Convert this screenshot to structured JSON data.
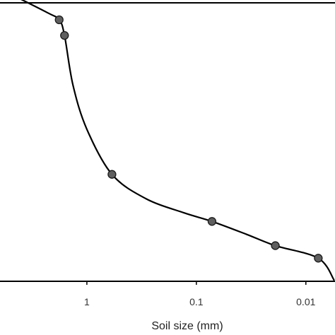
{
  "chart_data": {
    "type": "line",
    "title": "",
    "xlabel": "Soil size (mm)",
    "ylabel": "",
    "x_scale": "log",
    "x_reversed": true,
    "xlim": [
      6.4,
      0.0055
    ],
    "ylim": [
      0,
      100
    ],
    "grid": false,
    "legend": "none",
    "x_ticks": [
      {
        "value": 1,
        "label": "1"
      },
      {
        "value": 0.1,
        "label": "0.1"
      },
      {
        "value": 0.01,
        "label": "0.01"
      }
    ],
    "series": [
      {
        "marker_points": [
          {
            "x": 1.79,
            "y": 93.9
          },
          {
            "x": 1.6,
            "y": 88.3
          },
          {
            "x": 0.59,
            "y": 38.4
          },
          {
            "x": 0.072,
            "y": 21.5
          },
          {
            "x": 0.019,
            "y": 12.8
          },
          {
            "x": 0.0077,
            "y": 8.3
          }
        ],
        "curve": [
          {
            "x": 6.4,
            "y": 105.3
          },
          {
            "x": 2.3,
            "y": 96.5
          },
          {
            "x": 1.79,
            "y": 93.9
          },
          {
            "x": 1.6,
            "y": 88.3
          },
          {
            "x": 1.34,
            "y": 70.5
          },
          {
            "x": 1.0,
            "y": 54.6
          },
          {
            "x": 0.59,
            "y": 38.4
          },
          {
            "x": 0.29,
            "y": 29.7
          },
          {
            "x": 0.13,
            "y": 24.6
          },
          {
            "x": 0.072,
            "y": 21.5
          },
          {
            "x": 0.035,
            "y": 16.9
          },
          {
            "x": 0.019,
            "y": 12.8
          },
          {
            "x": 0.0077,
            "y": 8.3
          },
          {
            "x": 0.0055,
            "y": 0.3
          }
        ]
      }
    ]
  },
  "colors": {
    "line": "#000000",
    "marker_fill": "#5f5f5f",
    "marker_stroke": "#1a1a1a",
    "axis": "#000000"
  }
}
